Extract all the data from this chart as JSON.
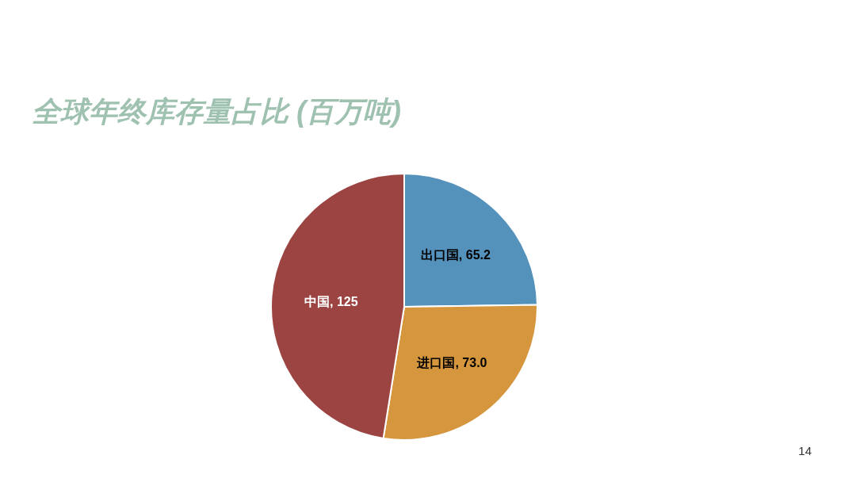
{
  "chart_data": {
    "type": "pie",
    "title": "全球年终库存量占比 (百万吨)",
    "categories": [
      "出口国",
      "进口国",
      "中国"
    ],
    "values": [
      65.2,
      73.0,
      125
    ],
    "value_labels": [
      "65.2",
      "73.0",
      "125"
    ],
    "colors": [
      "#5592bb",
      "#d6963e",
      "#9b4441"
    ],
    "annotations": [
      "14"
    ]
  }
}
